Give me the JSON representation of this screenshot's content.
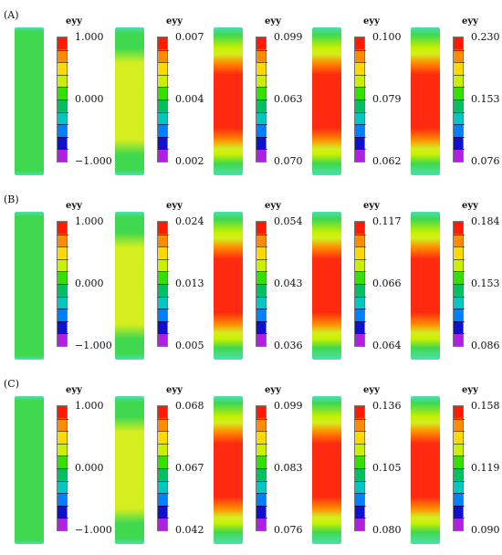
{
  "legend_title": "eyy",
  "rows": [
    {
      "label": "(A)",
      "panels": [
        {
          "specimen_pattern": "uniform-green",
          "ticks": [
            "1.000",
            "0.000",
            "−1.000"
          ]
        },
        {
          "specimen_pattern": "yellow-band",
          "ticks": [
            "0.007",
            "0.004",
            "0.002"
          ]
        },
        {
          "specimen_pattern": "red-center",
          "ticks": [
            "0.099",
            "0.063",
            "0.070"
          ]
        },
        {
          "specimen_pattern": "red-center",
          "ticks": [
            "0.100",
            "0.079",
            "0.062"
          ]
        },
        {
          "specimen_pattern": "red-center",
          "ticks": [
            "0.230",
            "0.153",
            "0.076"
          ]
        }
      ]
    },
    {
      "label": "(B)",
      "panels": [
        {
          "specimen_pattern": "uniform-green",
          "ticks": [
            "1.000",
            "0.000",
            "−1.000"
          ]
        },
        {
          "specimen_pattern": "yellow-band",
          "ticks": [
            "0.024",
            "0.013",
            "0.005"
          ]
        },
        {
          "specimen_pattern": "red-center",
          "ticks": [
            "0.054",
            "0.043",
            "0.036"
          ]
        },
        {
          "specimen_pattern": "red-center",
          "ticks": [
            "0.117",
            "0.066",
            "0.064"
          ]
        },
        {
          "specimen_pattern": "red-center",
          "ticks": [
            "0.184",
            "0.153",
            "0.086"
          ]
        }
      ]
    },
    {
      "label": "(C)",
      "panels": [
        {
          "specimen_pattern": "uniform-green",
          "ticks": [
            "1.000",
            "0.000",
            "−1.000"
          ]
        },
        {
          "specimen_pattern": "yellow-band",
          "ticks": [
            "0.068",
            "0.067",
            "0.042"
          ]
        },
        {
          "specimen_pattern": "red-center",
          "ticks": [
            "0.099",
            "0.083",
            "0.076"
          ]
        },
        {
          "specimen_pattern": "red-center",
          "ticks": [
            "0.136",
            "0.105",
            "0.080"
          ]
        },
        {
          "specimen_pattern": "red-center",
          "ticks": [
            "0.158",
            "0.119",
            "0.090"
          ]
        }
      ]
    }
  ],
  "colormap": [
    "#ff1a00",
    "#ff8c00",
    "#ffd800",
    "#c8f000",
    "#33e000",
    "#00c060",
    "#00c8c0",
    "#0080ff",
    "#1010d0",
    "#b020e0"
  ],
  "specimen_colors": {
    "green": "#3fd84f",
    "yellow": "#d4ee20",
    "red": "#ff2a10",
    "cyan_edge": "#4ce0b0"
  }
}
